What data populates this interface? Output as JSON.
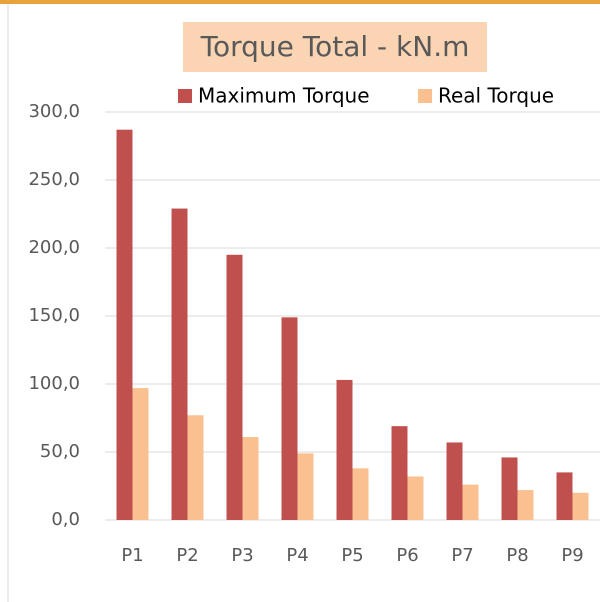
{
  "chart_data": {
    "type": "bar",
    "title": "Torque Total - kN.m",
    "categories": [
      "P1",
      "P2",
      "P3",
      "P4",
      "P5",
      "P6",
      "P7",
      "P8",
      "P9"
    ],
    "series": [
      {
        "name": "Maximum Torque",
        "color": "#c0504d",
        "values": [
          287,
          229,
          195,
          149,
          103,
          69,
          57,
          46,
          35
        ]
      },
      {
        "name": "Real Torque",
        "color": "#fac08f",
        "values": [
          97,
          77,
          61,
          49,
          38,
          32,
          26,
          22,
          20
        ]
      }
    ],
    "ylim": [
      0,
      300
    ],
    "yticks": [
      {
        "value": 0,
        "label": "0,0"
      },
      {
        "value": 50,
        "label": "50,0"
      },
      {
        "value": 100,
        "label": "100,0"
      },
      {
        "value": 150,
        "label": "150,0"
      },
      {
        "value": 200,
        "label": "200,0"
      },
      {
        "value": 250,
        "label": "250,0"
      },
      {
        "value": 300,
        "label": "300,0"
      }
    ],
    "grid": true,
    "legend": "top"
  }
}
